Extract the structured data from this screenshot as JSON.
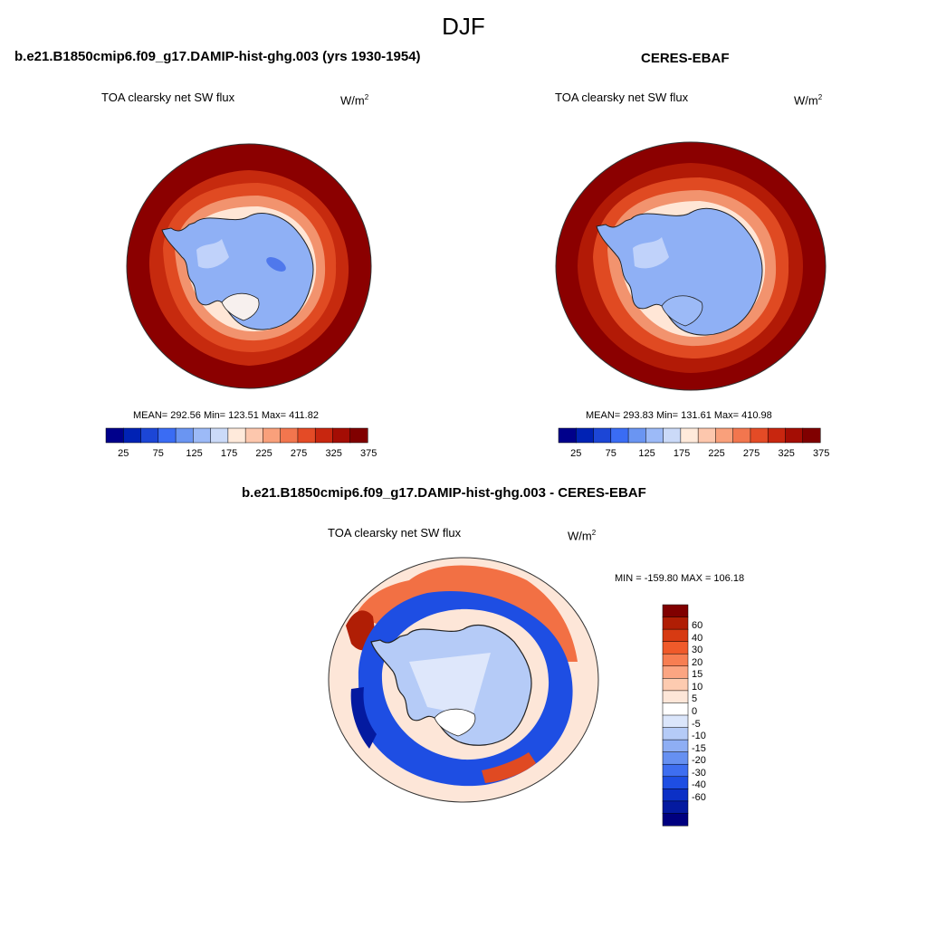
{
  "figure": {
    "season": "DJF",
    "colors": {
      "ocean_dark": "#8b0000",
      "ocean_warm": "#c62a0e",
      "orange": "#e8502a",
      "light_orange": "#f2a07e",
      "land_blue": "#8fb0f5",
      "ice_blue": "#c5d6fb",
      "coast": "#222222"
    }
  },
  "panels": [
    {
      "case_title": "b.e21.B1850cmip6.f09_g17.DAMIP-hist-ghg.003 (yrs 1930-1954)",
      "variable": "TOA clearsky net SW flux",
      "units_base": "W/m",
      "units_exp": "2",
      "stats": "MEAN= 292.56  Min= 123.51  Max= 411.82"
    },
    {
      "case_title": "CERES-EBAF",
      "variable": "TOA clearsky net SW flux",
      "units_base": "W/m",
      "units_exp": "2",
      "stats": "MEAN= 293.83  Min= 131.61  Max= 410.98"
    }
  ],
  "diff_panel": {
    "case_title": "b.e21.B1850cmip6.f09_g17.DAMIP-hist-ghg.003 - CERES-EBAF",
    "variable": "TOA clearsky net SW flux",
    "units_base": "W/m",
    "units_exp": "2",
    "minmax": "MIN = -159.80 MAX = 106.18"
  },
  "abs_colorbar": {
    "colors": [
      "#00008b",
      "#0022b4",
      "#1c46d6",
      "#3a6cf4",
      "#6a95f2",
      "#9cbaf7",
      "#cbdaf8",
      "#ffeadb",
      "#fdc7ad",
      "#f9a07b",
      "#f2764e",
      "#e44b26",
      "#c8260f",
      "#a40d04",
      "#800000"
    ],
    "labels": [
      "25",
      "75",
      "125",
      "175",
      "225",
      "275",
      "325",
      "375"
    ]
  },
  "diff_colorbar": {
    "colors": [
      "#800000",
      "#b01e05",
      "#d73a12",
      "#f05a2a",
      "#f77e52",
      "#fba582",
      "#fdcbb0",
      "#fde6d8",
      "#ffffff",
      "#dbe6fb",
      "#b5cbf7",
      "#8eaef4",
      "#6690f1",
      "#3e6ef0",
      "#1e4ee3",
      "#0c30c6",
      "#041aa0",
      "#00007f"
    ],
    "labels": [
      "60",
      "40",
      "30",
      "20",
      "15",
      "10",
      "5",
      "0",
      "-5",
      "-10",
      "-15",
      "-20",
      "-30",
      "-40",
      "-60"
    ]
  }
}
